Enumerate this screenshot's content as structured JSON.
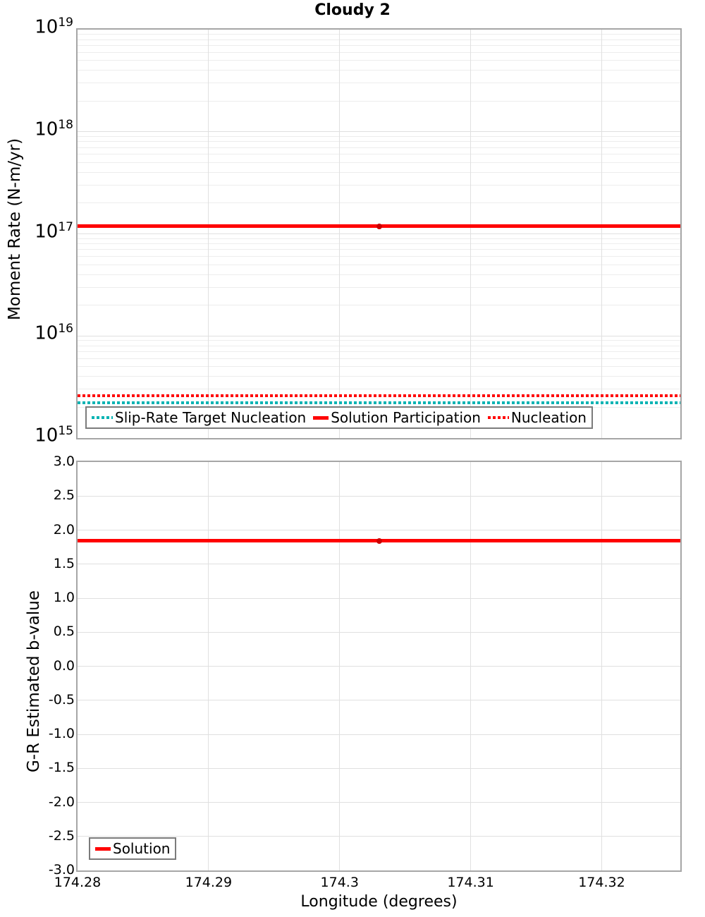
{
  "colors": {
    "red": "#ff0000",
    "red_marker": "#cc0000",
    "teal": "#00b3b3",
    "grid_minor": "#ededed",
    "grid_major": "#e0e0e0",
    "axis_border": "#a6a6a6",
    "legend_border": "#7b7b7b",
    "text": "#000000",
    "background": "#ffffff"
  },
  "chart_data": [
    {
      "type": "line",
      "title": "Cloudy 2",
      "ylabel": "Moment Rate (N-m/yr)",
      "yscale": "log",
      "ylim": [
        1000000000000000.0,
        1e+19
      ],
      "ytick_exponents": [
        19,
        18,
        17,
        16,
        15
      ],
      "xlim": [
        174.28,
        174.326
      ],
      "grid": true,
      "legend_position": "inside-bottom-left",
      "series": [
        {
          "name": "Slip-Rate Target Nucleation",
          "color": "#00b3b3",
          "style": "dotted",
          "value": 2200000000000000.0
        },
        {
          "name": "Solution Participation",
          "color": "#ff0000",
          "style": "solid",
          "value": 1.19e+17,
          "vertex_lon": 174.303,
          "marker_color": "#cc0000"
        },
        {
          "name": "Nucleation",
          "color": "#ff0000",
          "style": "dotted",
          "value": 2600000000000000.0
        }
      ]
    },
    {
      "type": "line",
      "title": "",
      "ylabel": "G-R Estimated b-value",
      "xlabel": "Longitude (degrees)",
      "yscale": "linear",
      "ylim": [
        -3.0,
        3.0
      ],
      "xlim": [
        174.28,
        174.326
      ],
      "grid": true,
      "legend_position": "inside-bottom-left",
      "yticks": [
        {
          "value": 3.0,
          "label": "3.0"
        },
        {
          "value": 2.5,
          "label": "2.5"
        },
        {
          "value": 2.0,
          "label": "2.0"
        },
        {
          "value": 1.5,
          "label": "1.5"
        },
        {
          "value": 1.0,
          "label": "1.0"
        },
        {
          "value": 0.5,
          "label": "0.5"
        },
        {
          "value": 0.0,
          "label": "0.0"
        },
        {
          "value": -0.5,
          "label": "-0.5"
        },
        {
          "value": -1.0,
          "label": "-1.0"
        },
        {
          "value": -1.5,
          "label": "-1.5"
        },
        {
          "value": -2.0,
          "label": "-2.0"
        },
        {
          "value": -2.5,
          "label": "-2.5"
        },
        {
          "value": -3.0,
          "label": "-3.0"
        }
      ],
      "xticks": [
        {
          "value": 174.28,
          "label": "174.28"
        },
        {
          "value": 174.29,
          "label": "174.29"
        },
        {
          "value": 174.3,
          "label": "174.3"
        },
        {
          "value": 174.31,
          "label": "174.31"
        },
        {
          "value": 174.32,
          "label": "174.32"
        }
      ],
      "series": [
        {
          "name": "Solution",
          "color": "#ff0000",
          "style": "solid",
          "value": 1.84,
          "vertex_lon": 174.303,
          "marker_color": "#cc0000"
        }
      ]
    }
  ]
}
